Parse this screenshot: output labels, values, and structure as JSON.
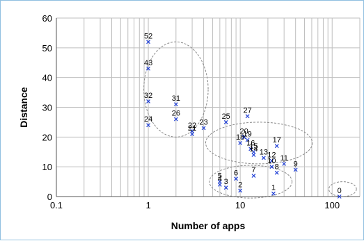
{
  "chart_data": {
    "type": "scatter",
    "title": "",
    "xlabel": "Number of apps",
    "ylabel": "Distance",
    "x_scale": "log",
    "xlim": [
      0.1,
      200
    ],
    "ylim": [
      0,
      60
    ],
    "grid": true,
    "legend": "none",
    "x_ticks": [
      {
        "value": 0.1,
        "label": "0.1"
      },
      {
        "value": 1,
        "label": "1"
      },
      {
        "value": 10,
        "label": "10"
      },
      {
        "value": 100,
        "label": "100"
      }
    ],
    "y_ticks": [
      {
        "value": 0,
        "label": "0"
      },
      {
        "value": 10,
        "label": "10"
      },
      {
        "value": 20,
        "label": "20"
      },
      {
        "value": 30,
        "label": "30"
      },
      {
        "value": 40,
        "label": "40"
      },
      {
        "value": 50,
        "label": "50"
      },
      {
        "value": 60,
        "label": "60"
      }
    ],
    "marker_color": "#1f3fd6",
    "cluster_color": "#888888",
    "points": [
      {
        "label": "52",
        "x": 1,
        "y": 52
      },
      {
        "label": "43",
        "x": 1,
        "y": 43
      },
      {
        "label": "32",
        "x": 1,
        "y": 32
      },
      {
        "label": "24",
        "x": 1,
        "y": 24
      },
      {
        "label": "31",
        "x": 2,
        "y": 31
      },
      {
        "label": "26",
        "x": 2,
        "y": 26
      },
      {
        "label": "22",
        "x": 3,
        "y": 22
      },
      {
        "label": "21",
        "x": 3,
        "y": 21
      },
      {
        "label": "23",
        "x": 4,
        "y": 23
      },
      {
        "label": "25",
        "x": 7,
        "y": 25
      },
      {
        "label": "27",
        "x": 12,
        "y": 27
      },
      {
        "label": "20",
        "x": 11,
        "y": 20
      },
      {
        "label": "19",
        "x": 12,
        "y": 19
      },
      {
        "label": "18",
        "x": 10,
        "y": 18
      },
      {
        "label": "16",
        "x": 13,
        "y": 16
      },
      {
        "label": "15",
        "x": 14,
        "y": 15
      },
      {
        "label": "14",
        "x": 14,
        "y": 14
      },
      {
        "label": "17",
        "x": 25,
        "y": 17
      },
      {
        "label": "13",
        "x": 18,
        "y": 13
      },
      {
        "label": "12",
        "x": 22,
        "y": 12
      },
      {
        "label": "11",
        "x": 30,
        "y": 11
      },
      {
        "label": "10",
        "x": 22,
        "y": 10
      },
      {
        "label": "8",
        "x": 25,
        "y": 8
      },
      {
        "label": "9",
        "x": 40,
        "y": 9
      },
      {
        "label": "7",
        "x": 14,
        "y": 7
      },
      {
        "label": "6",
        "x": 9,
        "y": 6
      },
      {
        "label": "5",
        "x": 6,
        "y": 5
      },
      {
        "label": "4",
        "x": 6,
        "y": 4
      },
      {
        "label": "3",
        "x": 7,
        "y": 3
      },
      {
        "label": "2",
        "x": 10,
        "y": 2
      },
      {
        "label": "1",
        "x": 23,
        "y": 1
      },
      {
        "label": "0",
        "x": 120,
        "y": 0
      }
    ],
    "clusters": [
      {
        "cx": 2.0,
        "cy": 36,
        "rx_decades": 0.35,
        "ry": 16
      },
      {
        "cx": 16,
        "cy": 18,
        "rx_decades": 0.58,
        "ry": 7
      },
      {
        "cx": 13,
        "cy": 5,
        "rx_decades": 0.45,
        "ry": 5.5
      },
      {
        "cx": 130,
        "cy": 2.5,
        "rx_decades": 0.15,
        "ry": 2.5
      }
    ]
  }
}
